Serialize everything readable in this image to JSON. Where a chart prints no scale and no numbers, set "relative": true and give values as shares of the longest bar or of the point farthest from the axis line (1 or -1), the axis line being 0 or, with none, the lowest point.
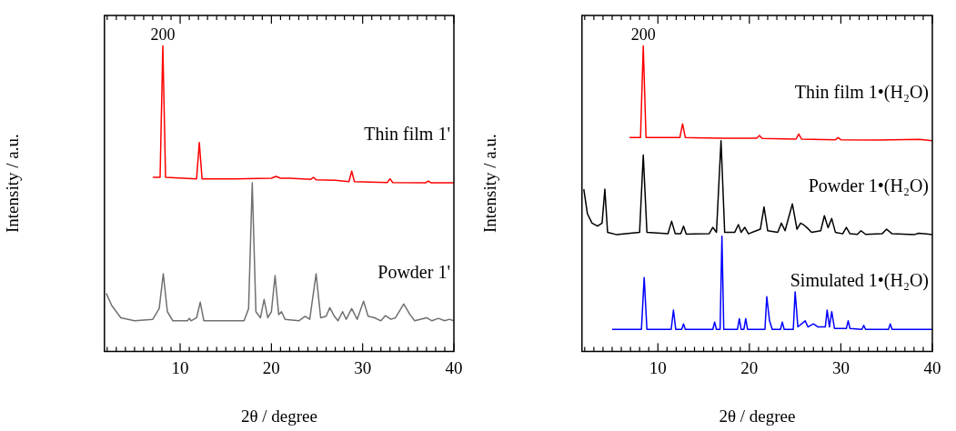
{
  "chart_data": [
    {
      "type": "line",
      "relative": true,
      "xlabel": "2θ / degree",
      "ylabel": "Intensity / a.u.",
      "xlim": [
        1.7,
        40
      ],
      "tick_labels": "x",
      "marker": "none",
      "xticks": [
        {
          "value": 2,
          "label": null
        },
        {
          "value": 3,
          "label": null
        },
        {
          "value": 4,
          "label": null
        },
        {
          "value": 5,
          "label": null
        },
        {
          "value": 6,
          "label": null
        },
        {
          "value": 7,
          "label": null
        },
        {
          "value": 8,
          "label": null
        },
        {
          "value": 9,
          "label": null
        },
        10,
        {
          "value": 11,
          "label": null
        },
        {
          "value": 12,
          "label": null
        },
        {
          "value": 13,
          "label": null
        },
        {
          "value": 14,
          "label": null
        },
        {
          "value": 15,
          "label": null
        },
        {
          "value": 16,
          "label": null
        },
        {
          "value": 17,
          "label": null
        },
        {
          "value": 18,
          "label": null
        },
        {
          "value": 19,
          "label": null
        },
        20,
        {
          "value": 21,
          "label": null
        },
        {
          "value": 22,
          "label": null
        },
        {
          "value": 23,
          "label": null
        },
        {
          "value": 24,
          "label": null
        },
        {
          "value": 25,
          "label": null
        },
        {
          "value": 26,
          "label": null
        },
        {
          "value": 27,
          "label": null
        },
        {
          "value": 28,
          "label": null
        },
        {
          "value": 29,
          "label": null
        },
        30,
        {
          "value": 31,
          "label": null
        },
        {
          "value": 32,
          "label": null
        },
        {
          "value": 33,
          "label": null
        },
        {
          "value": 34,
          "label": null
        },
        {
          "value": 35,
          "label": null
        },
        {
          "value": 36,
          "label": null
        },
        {
          "value": 37,
          "label": null
        },
        {
          "value": 38,
          "label": null
        },
        {
          "value": 39,
          "label": null
        },
        40
      ],
      "annotations": [
        {
          "text": "200",
          "x": 8.1,
          "y": 1.0
        }
      ],
      "series": [
        {
          "name": "Thin film 1'",
          "color": "#ff0000",
          "x": [
            7,
            7.8,
            8.1,
            8.4,
            11.8,
            12.1,
            12.4,
            16,
            20,
            20.5,
            21,
            22,
            24.3,
            24.6,
            24.9,
            27,
            28.5,
            28.8,
            29.1,
            32.7,
            33,
            33.3,
            36.9,
            37.2,
            37.5,
            40
          ],
          "values": [
            0.57,
            0.57,
            1.0,
            0.57,
            0.565,
            0.684,
            0.565,
            0.565,
            0.567,
            0.573,
            0.567,
            0.567,
            0.563,
            0.57,
            0.562,
            0.56,
            0.556,
            0.59,
            0.556,
            0.553,
            0.565,
            0.553,
            0.552,
            0.558,
            0.552,
            0.552
          ]
        },
        {
          "name": "Powder 1'",
          "color": "#707070",
          "x": [
            1.9,
            2.5,
            3.5,
            5,
            7,
            7.7,
            8.15,
            8.6,
            9.2,
            10.8,
            11,
            11.2,
            11.8,
            12.2,
            12.6,
            17,
            17.5,
            17.9,
            18.3,
            18.8,
            19.2,
            19.6,
            20.0,
            20.4,
            20.8,
            21.1,
            21.5,
            23,
            23.7,
            24.2,
            24.9,
            25.4,
            26,
            26.4,
            26.9,
            27.3,
            27.8,
            28.2,
            28.8,
            29.4,
            30.1,
            30.6,
            31.3,
            32,
            32.5,
            33.1,
            33.6,
            34.5,
            35.2,
            35.7,
            37,
            37.6,
            38.3,
            39,
            39.5,
            40
          ],
          "values": [
            0.19,
            0.15,
            0.11,
            0.1,
            0.105,
            0.14,
            0.254,
            0.13,
            0.1,
            0.1,
            0.108,
            0.1,
            0.11,
            0.161,
            0.1,
            0.1,
            0.14,
            0.552,
            0.13,
            0.11,
            0.17,
            0.11,
            0.13,
            0.248,
            0.12,
            0.13,
            0.105,
            0.1,
            0.115,
            0.105,
            0.254,
            0.11,
            0.115,
            0.143,
            0.115,
            0.1,
            0.13,
            0.105,
            0.14,
            0.105,
            0.164,
            0.115,
            0.11,
            0.1,
            0.117,
            0.105,
            0.11,
            0.155,
            0.12,
            0.1,
            0.11,
            0.1,
            0.108,
            0.1,
            0.105,
            0.1
          ]
        }
      ]
    },
    {
      "type": "line",
      "relative": true,
      "xlabel": "2θ / degree",
      "ylabel": "Intensity / a.u.",
      "xlim": [
        1.7,
        40
      ],
      "tick_labels": "x",
      "marker": "none",
      "xticks": [
        {
          "value": 2,
          "label": null
        },
        {
          "value": 3,
          "label": null
        },
        {
          "value": 4,
          "label": null
        },
        {
          "value": 5,
          "label": null
        },
        {
          "value": 6,
          "label": null
        },
        {
          "value": 7,
          "label": null
        },
        {
          "value": 8,
          "label": null
        },
        {
          "value": 9,
          "label": null
        },
        10,
        {
          "value": 11,
          "label": null
        },
        {
          "value": 12,
          "label": null
        },
        {
          "value": 13,
          "label": null
        },
        {
          "value": 14,
          "label": null
        },
        {
          "value": 15,
          "label": null
        },
        {
          "value": 16,
          "label": null
        },
        {
          "value": 17,
          "label": null
        },
        {
          "value": 18,
          "label": null
        },
        {
          "value": 19,
          "label": null
        },
        20,
        {
          "value": 21,
          "label": null
        },
        {
          "value": 22,
          "label": null
        },
        {
          "value": 23,
          "label": null
        },
        {
          "value": 24,
          "label": null
        },
        {
          "value": 25,
          "label": null
        },
        {
          "value": 26,
          "label": null
        },
        {
          "value": 27,
          "label": null
        },
        {
          "value": 28,
          "label": null
        },
        {
          "value": 29,
          "label": null
        },
        30,
        {
          "value": 31,
          "label": null
        },
        {
          "value": 32,
          "label": null
        },
        {
          "value": 33,
          "label": null
        },
        {
          "value": 34,
          "label": null
        },
        {
          "value": 35,
          "label": null
        },
        {
          "value": 36,
          "label": null
        },
        {
          "value": 37,
          "label": null
        },
        {
          "value": 38,
          "label": null
        },
        {
          "value": 39,
          "label": null
        },
        40
      ],
      "annotations": [
        {
          "text": "200",
          "x": 8.4,
          "y": 1.0
        }
      ],
      "series": [
        {
          "name": "Thin film 1•(H₂O)",
          "color": "#ff0000",
          "x": [
            6.9,
            8.1,
            8.4,
            8.7,
            12.4,
            12.7,
            13.0,
            17,
            20.8,
            21.1,
            21.4,
            25.1,
            25.4,
            25.7,
            29.4,
            29.7,
            30,
            34,
            38.6,
            40
          ],
          "values": [
            0.7,
            0.7,
            1.0,
            0.7,
            0.7,
            0.745,
            0.7,
            0.698,
            0.698,
            0.707,
            0.697,
            0.695,
            0.712,
            0.695,
            0.693,
            0.7,
            0.693,
            0.692,
            0.694,
            0.69
          ]
        },
        {
          "name": "Powder 1•(H₂O)",
          "color": "#000000",
          "x": [
            1.9,
            2.3,
            2.8,
            3.4,
            3.9,
            4.2,
            4.5,
            5.5,
            8.0,
            8.4,
            8.8,
            11.1,
            11.5,
            11.9,
            12.5,
            12.8,
            13.1,
            15.6,
            16.0,
            16.4,
            16.9,
            17.3,
            18.4,
            18.8,
            19.1,
            19.5,
            19.9,
            21.2,
            21.6,
            22.0,
            23.1,
            23.5,
            23.9,
            24.7,
            25.2,
            25.6,
            25.9,
            26.3,
            26.8,
            27.8,
            28.2,
            28.6,
            29.0,
            29.4,
            30.2,
            30.6,
            31.0,
            31.8,
            32.2,
            32.7,
            34.5,
            35.0,
            35.6,
            38,
            38.5,
            40
          ],
          "values": [
            0.531,
            0.45,
            0.42,
            0.41,
            0.42,
            0.531,
            0.39,
            0.382,
            0.39,
            0.643,
            0.39,
            0.385,
            0.426,
            0.385,
            0.385,
            0.41,
            0.384,
            0.385,
            0.406,
            0.39,
            0.69,
            0.39,
            0.39,
            0.415,
            0.39,
            0.406,
            0.385,
            0.4,
            0.473,
            0.395,
            0.39,
            0.42,
            0.395,
            0.483,
            0.4,
            0.42,
            0.415,
            0.405,
            0.39,
            0.395,
            0.444,
            0.405,
            0.435,
            0.39,
            0.385,
            0.406,
            0.385,
            0.383,
            0.395,
            0.383,
            0.385,
            0.4,
            0.385,
            0.382,
            0.387,
            0.382
          ]
        },
        {
          "name": "Simulated 1•(H₂O)",
          "color": "#0000ff",
          "x": [
            5.0,
            8.2,
            8.5,
            8.8,
            11.45,
            11.7,
            11.95,
            12.6,
            12.8,
            13.0,
            16.0,
            16.2,
            16.4,
            16.8,
            17.0,
            17.2,
            18.7,
            18.9,
            19.1,
            19.4,
            19.6,
            19.8,
            21.7,
            21.9,
            22.2,
            22.5,
            23.4,
            23.6,
            23.8,
            24.8,
            25.0,
            25.3,
            26.1,
            26.4,
            27.0,
            27.5,
            28.3,
            28.5,
            28.75,
            29.0,
            29.3,
            30.6,
            30.8,
            31.0,
            32.3,
            32.5,
            32.7,
            35.2,
            35.4,
            35.6,
            40
          ],
          "values": [
            0.072,
            0.072,
            0.242,
            0.072,
            0.072,
            0.135,
            0.072,
            0.072,
            0.09,
            0.072,
            0.072,
            0.096,
            0.072,
            0.072,
            0.377,
            0.072,
            0.072,
            0.107,
            0.072,
            0.072,
            0.107,
            0.072,
            0.072,
            0.179,
            0.1,
            0.072,
            0.072,
            0.096,
            0.072,
            0.072,
            0.195,
            0.08,
            0.1,
            0.08,
            0.09,
            0.08,
            0.08,
            0.135,
            0.08,
            0.13,
            0.075,
            0.075,
            0.1,
            0.075,
            0.072,
            0.085,
            0.072,
            0.072,
            0.09,
            0.072,
            0.072
          ]
        }
      ]
    }
  ]
}
